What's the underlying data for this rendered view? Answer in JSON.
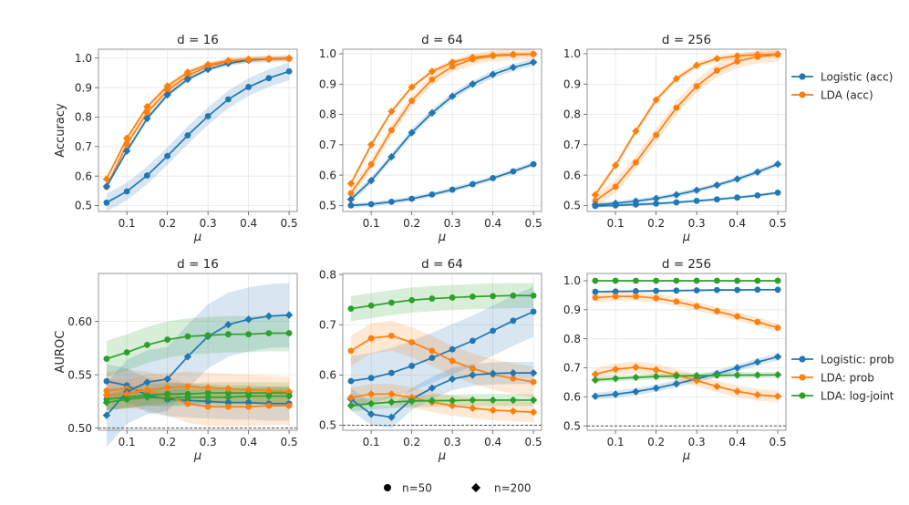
{
  "figure": {
    "marker_legend": {
      "circle_label": "n=50",
      "diamond_label": "n=200"
    }
  },
  "chart_data": [
    {
      "type": "line",
      "title": "d = 16",
      "xlabel": "μ",
      "ylabel": "Accuracy",
      "xlim": [
        0.03,
        0.52
      ],
      "ylim": [
        0.48,
        1.03
      ],
      "xticks": [
        0.1,
        0.2,
        0.3,
        0.4,
        0.5
      ],
      "xtick_labels": [
        "0.1",
        "0.2",
        "0.3",
        "0.4",
        "0.5"
      ],
      "yticks": [
        0.5,
        0.6,
        0.7,
        0.8,
        0.9,
        1.0
      ],
      "ytick_labels": [
        "0.5",
        "0.6",
        "0.7",
        "0.8",
        "0.9",
        "1.0"
      ],
      "x": [
        0.05,
        0.1,
        0.15,
        0.2,
        0.25,
        0.3,
        0.35,
        0.4,
        0.45,
        0.5
      ],
      "series": [
        {
          "name": "Logistic (acc)",
          "color": "#1f77b4",
          "marker": "circle",
          "values": [
            0.51,
            0.548,
            0.602,
            0.668,
            0.738,
            0.803,
            0.86,
            0.902,
            0.932,
            0.955
          ],
          "band": 0.03
        },
        {
          "name": "LDA (acc)",
          "color": "#ff7f0e",
          "marker": "circle",
          "values": [
            0.563,
            0.708,
            0.815,
            0.89,
            0.94,
            0.972,
            0.988,
            0.994,
            0.997,
            0.998
          ],
          "band": 0.012
        },
        {
          "name": "Logistic (acc)",
          "color": "#1f77b4",
          "marker": "diamond",
          "values": [
            0.565,
            0.685,
            0.795,
            0.875,
            0.928,
            0.962,
            0.982,
            0.993,
            0.997,
            0.999
          ],
          "band": 0.008
        },
        {
          "name": "LDA (acc)",
          "color": "#ff7f0e",
          "marker": "diamond",
          "values": [
            0.59,
            0.728,
            0.835,
            0.905,
            0.952,
            0.978,
            0.991,
            0.996,
            0.998,
            0.999
          ],
          "band": 0.008
        }
      ]
    },
    {
      "type": "line",
      "title": "d = 64",
      "xlabel": "μ",
      "ylabel": "",
      "xlim": [
        0.03,
        0.52
      ],
      "ylim": [
        0.48,
        1.015
      ],
      "xticks": [
        0.1,
        0.2,
        0.3,
        0.4,
        0.5
      ],
      "xtick_labels": [
        "0.1",
        "0.2",
        "0.3",
        "0.4",
        "0.5"
      ],
      "yticks": [
        0.5,
        0.6,
        0.7,
        0.8,
        0.9,
        1.0
      ],
      "ytick_labels": [
        "0.5",
        "0.6",
        "0.7",
        "0.8",
        "0.9",
        "1.0"
      ],
      "x": [
        0.05,
        0.1,
        0.15,
        0.2,
        0.25,
        0.3,
        0.35,
        0.4,
        0.45,
        0.5
      ],
      "series": [
        {
          "name": "Logistic (acc)",
          "color": "#1f77b4",
          "marker": "circle",
          "values": [
            0.5,
            0.504,
            0.512,
            0.522,
            0.536,
            0.552,
            0.57,
            0.59,
            0.612,
            0.636
          ],
          "band": 0.008
        },
        {
          "name": "LDA (acc)",
          "color": "#ff7f0e",
          "marker": "circle",
          "values": [
            0.54,
            0.635,
            0.748,
            0.845,
            0.915,
            0.958,
            0.982,
            0.993,
            0.997,
            0.999
          ],
          "band": 0.018
        },
        {
          "name": "Logistic (acc)",
          "color": "#1f77b4",
          "marker": "diamond",
          "values": [
            0.52,
            0.582,
            0.66,
            0.74,
            0.805,
            0.86,
            0.9,
            0.932,
            0.955,
            0.972
          ],
          "band": 0.012
        },
        {
          "name": "LDA (acc)",
          "color": "#ff7f0e",
          "marker": "diamond",
          "values": [
            0.572,
            0.7,
            0.81,
            0.89,
            0.942,
            0.972,
            0.988,
            0.995,
            0.998,
            0.999
          ],
          "band": 0.008
        }
      ]
    },
    {
      "type": "line",
      "title": "d = 256",
      "xlabel": "μ",
      "ylabel": "",
      "xlim": [
        0.03,
        0.52
      ],
      "ylim": [
        0.48,
        1.015
      ],
      "xticks": [
        0.1,
        0.2,
        0.3,
        0.4,
        0.5
      ],
      "xtick_labels": [
        "0.1",
        "0.2",
        "0.3",
        "0.4",
        "0.5"
      ],
      "yticks": [
        0.5,
        0.6,
        0.7,
        0.8,
        0.9,
        1.0
      ],
      "ytick_labels": [
        "0.5",
        "0.6",
        "0.7",
        "0.8",
        "0.9",
        "1.0"
      ],
      "x": [
        0.05,
        0.1,
        0.15,
        0.2,
        0.25,
        0.3,
        0.35,
        0.4,
        0.45,
        0.5
      ],
      "series": [
        {
          "name": "Logistic (acc)",
          "color": "#1f77b4",
          "marker": "circle",
          "values": [
            0.498,
            0.5,
            0.503,
            0.506,
            0.51,
            0.515,
            0.52,
            0.526,
            0.533,
            0.542
          ],
          "band": 0.005
        },
        {
          "name": "LDA (acc)",
          "color": "#ff7f0e",
          "marker": "circle",
          "values": [
            0.515,
            0.562,
            0.642,
            0.732,
            0.822,
            0.893,
            0.945,
            0.975,
            0.99,
            0.997
          ],
          "band": 0.022
        },
        {
          "name": "Logistic (acc)",
          "color": "#1f77b4",
          "marker": "diamond",
          "values": [
            0.502,
            0.507,
            0.514,
            0.523,
            0.535,
            0.55,
            0.567,
            0.587,
            0.61,
            0.636
          ],
          "band": 0.008
        },
        {
          "name": "LDA (acc)",
          "color": "#ff7f0e",
          "marker": "diamond",
          "values": [
            0.535,
            0.632,
            0.745,
            0.848,
            0.918,
            0.962,
            0.984,
            0.993,
            0.997,
            0.999
          ],
          "band": 0.01
        }
      ],
      "legend": {
        "placement": "right",
        "entries": [
          {
            "label": "Logistic (acc)",
            "color": "#1f77b4"
          },
          {
            "label": "LDA (acc)",
            "color": "#ff7f0e"
          }
        ]
      }
    },
    {
      "type": "line",
      "title": "d = 16",
      "xlabel": "μ",
      "ylabel": "AUROC",
      "xlim": [
        0.03,
        0.52
      ],
      "ylim": [
        0.498,
        0.645
      ],
      "reference_line": 0.5,
      "xticks": [
        0.1,
        0.2,
        0.3,
        0.4,
        0.5
      ],
      "xtick_labels": [
        "0.1",
        "0.2",
        "0.3",
        "0.4",
        "0.5"
      ],
      "yticks": [
        0.5,
        0.55,
        0.6
      ],
      "ytick_labels": [
        "0.50",
        "0.55",
        "0.60"
      ],
      "x": [
        0.05,
        0.1,
        0.15,
        0.2,
        0.25,
        0.3,
        0.35,
        0.4,
        0.45,
        0.5
      ],
      "series": [
        {
          "name": "Logistic: prob",
          "color": "#1f77b4",
          "marker": "circle",
          "values": [
            0.544,
            0.54,
            0.531,
            0.527,
            0.526,
            0.525,
            0.524,
            0.524,
            0.523,
            0.523
          ],
          "band": 0.016
        },
        {
          "name": "LDA: prob",
          "color": "#ff7f0e",
          "marker": "circle",
          "values": [
            0.535,
            0.537,
            0.535,
            0.53,
            0.523,
            0.52,
            0.52,
            0.52,
            0.521,
            0.521
          ],
          "band": 0.018
        },
        {
          "name": "LDA: log-joint",
          "color": "#2ca02c",
          "marker": "circle",
          "values": [
            0.527,
            0.529,
            0.531,
            0.532,
            0.532,
            0.533,
            0.533,
            0.533,
            0.533,
            0.533
          ],
          "band": 0.01
        },
        {
          "name": "Logistic: prob",
          "color": "#1f77b4",
          "marker": "diamond",
          "values": [
            0.512,
            0.534,
            0.543,
            0.546,
            0.567,
            0.586,
            0.597,
            0.602,
            0.605,
            0.606
          ],
          "band": 0.03
        },
        {
          "name": "LDA: prob",
          "color": "#ff7f0e",
          "marker": "diamond",
          "values": [
            0.531,
            0.532,
            0.536,
            0.538,
            0.539,
            0.538,
            0.537,
            0.536,
            0.535,
            0.534
          ],
          "band": 0.014
        },
        {
          "name": "LDA: log-joint",
          "color": "#2ca02c",
          "marker": "diamond",
          "values": [
            0.524,
            0.527,
            0.529,
            0.528,
            0.529,
            0.529,
            0.529,
            0.53,
            0.53,
            0.53
          ],
          "band": 0.008
        },
        {
          "name": "LDA: log-joint",
          "color": "#2ca02c",
          "marker": "circle",
          "values": [
            0.565,
            0.571,
            0.578,
            0.583,
            0.586,
            0.587,
            0.588,
            0.588,
            0.589,
            0.589
          ],
          "band": 0.017
        }
      ]
    },
    {
      "type": "line",
      "title": "d = 64",
      "xlabel": "μ",
      "ylabel": "",
      "xlim": [
        0.03,
        0.52
      ],
      "ylim": [
        0.49,
        0.802
      ],
      "reference_line": 0.5,
      "xticks": [
        0.1,
        0.2,
        0.3,
        0.4,
        0.5
      ],
      "xtick_labels": [
        "0.1",
        "0.2",
        "0.3",
        "0.4",
        "0.5"
      ],
      "yticks": [
        0.5,
        0.6,
        0.7,
        0.8
      ],
      "ytick_labels": [
        "0.5",
        "0.6",
        "0.7",
        "0.8"
      ],
      "x": [
        0.05,
        0.1,
        0.15,
        0.2,
        0.25,
        0.3,
        0.35,
        0.4,
        0.45,
        0.5
      ],
      "series": [
        {
          "name": "Logistic: prob",
          "color": "#1f77b4",
          "marker": "circle",
          "values": [
            0.588,
            0.594,
            0.604,
            0.618,
            0.634,
            0.651,
            0.668,
            0.688,
            0.708,
            0.726
          ],
          "band": 0.05
        },
        {
          "name": "LDA: prob",
          "color": "#ff7f0e",
          "marker": "circle",
          "values": [
            0.648,
            0.673,
            0.678,
            0.665,
            0.648,
            0.628,
            0.613,
            0.601,
            0.593,
            0.586
          ],
          "band": 0.03
        },
        {
          "name": "LDA: log-joint",
          "color": "#2ca02c",
          "marker": "circle",
          "values": [
            0.732,
            0.738,
            0.744,
            0.749,
            0.752,
            0.754,
            0.756,
            0.757,
            0.758,
            0.758
          ],
          "band": 0.025
        },
        {
          "name": "Logistic: prob",
          "color": "#1f77b4",
          "marker": "diamond",
          "values": [
            0.552,
            0.522,
            0.516,
            0.552,
            0.574,
            0.592,
            0.6,
            0.603,
            0.604,
            0.604
          ],
          "band": 0.022
        },
        {
          "name": "LDA: prob",
          "color": "#ff7f0e",
          "marker": "diamond",
          "values": [
            0.555,
            0.562,
            0.562,
            0.555,
            0.546,
            0.539,
            0.534,
            0.53,
            0.528,
            0.526
          ],
          "band": 0.02
        },
        {
          "name": "LDA: log-joint",
          "color": "#2ca02c",
          "marker": "diamond",
          "values": [
            0.539,
            0.543,
            0.546,
            0.548,
            0.549,
            0.549,
            0.55,
            0.55,
            0.55,
            0.55
          ],
          "band": 0.012
        }
      ]
    },
    {
      "type": "line",
      "title": "d = 256",
      "xlabel": "μ",
      "ylabel": "",
      "xlim": [
        0.03,
        0.52
      ],
      "ylim": [
        0.485,
        1.025
      ],
      "reference_line": 0.5,
      "xticks": [
        0.1,
        0.2,
        0.3,
        0.4,
        0.5
      ],
      "xtick_labels": [
        "0.1",
        "0.2",
        "0.3",
        "0.4",
        "0.5"
      ],
      "yticks": [
        0.5,
        0.6,
        0.7,
        0.8,
        0.9,
        1.0
      ],
      "ytick_labels": [
        "0.5",
        "0.6",
        "0.7",
        "0.8",
        "0.9",
        "1.0"
      ],
      "x": [
        0.05,
        0.1,
        0.15,
        0.2,
        0.25,
        0.3,
        0.35,
        0.4,
        0.45,
        0.5
      ],
      "series": [
        {
          "name": "Logistic: prob",
          "color": "#1f77b4",
          "marker": "circle",
          "values": [
            0.962,
            0.963,
            0.964,
            0.965,
            0.966,
            0.967,
            0.968,
            0.968,
            0.969,
            0.969
          ],
          "band": 0.004
        },
        {
          "name": "LDA: prob",
          "color": "#ff7f0e",
          "marker": "circle",
          "values": [
            0.942,
            0.946,
            0.946,
            0.94,
            0.928,
            0.912,
            0.895,
            0.877,
            0.858,
            0.838
          ],
          "band": 0.015
        },
        {
          "name": "LDA: log-joint",
          "color": "#2ca02c",
          "marker": "circle",
          "values": [
            1.0,
            1.0,
            1.0,
            1.0,
            1.0,
            1.0,
            1.0,
            1.0,
            1.0,
            1.0
          ],
          "band": 0.002
        },
        {
          "name": "Logistic: prob",
          "color": "#1f77b4",
          "marker": "diamond",
          "values": [
            0.602,
            0.609,
            0.618,
            0.63,
            0.645,
            0.662,
            0.68,
            0.7,
            0.72,
            0.738
          ],
          "band": 0.012
        },
        {
          "name": "LDA: prob",
          "color": "#ff7f0e",
          "marker": "diamond",
          "values": [
            0.678,
            0.695,
            0.702,
            0.693,
            0.676,
            0.656,
            0.636,
            0.619,
            0.607,
            0.602
          ],
          "band": 0.02
        },
        {
          "name": "LDA: log-joint",
          "color": "#2ca02c",
          "marker": "diamond",
          "values": [
            0.658,
            0.663,
            0.667,
            0.67,
            0.672,
            0.673,
            0.674,
            0.675,
            0.675,
            0.676
          ],
          "band": 0.01
        }
      ],
      "legend": {
        "placement": "right",
        "entries": [
          {
            "label": "Logistic: prob",
            "color": "#1f77b4"
          },
          {
            "label": "LDA: prob",
            "color": "#ff7f0e"
          },
          {
            "label": "LDA: log-joint",
            "color": "#2ca02c"
          }
        ]
      }
    }
  ]
}
